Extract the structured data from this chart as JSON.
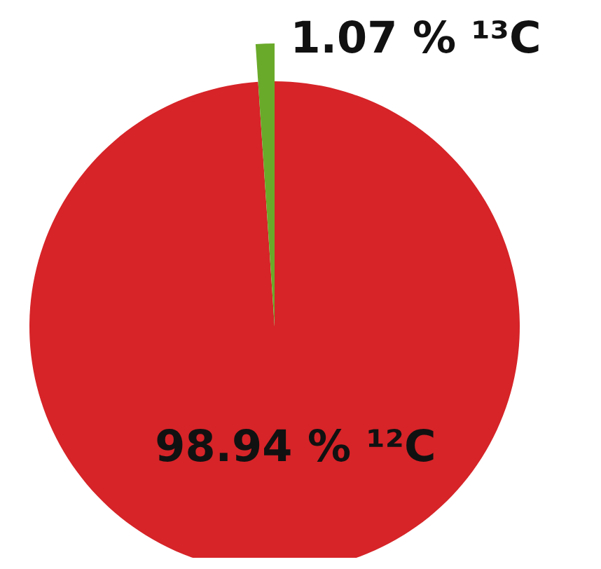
{
  "chart_data": {
    "type": "pie",
    "categories": [
      "¹²C",
      "¹³C"
    ],
    "values": [
      98.94,
      1.07
    ],
    "colors": [
      "#d62428",
      "#6aaa2a"
    ],
    "value_labels": [
      "98.94 %",
      "1.07 %"
    ]
  }
}
